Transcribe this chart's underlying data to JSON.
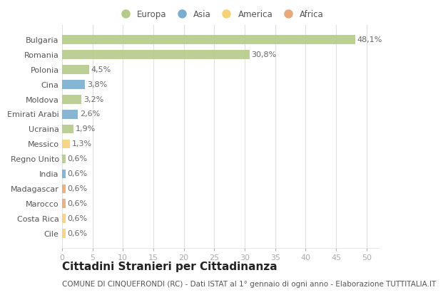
{
  "countries": [
    "Bulgaria",
    "Romania",
    "Polonia",
    "Cina",
    "Moldova",
    "Emirati Arabi",
    "Ucraina",
    "Messico",
    "Regno Unito",
    "India",
    "Madagascar",
    "Marocco",
    "Costa Rica",
    "Cile"
  ],
  "values": [
    48.1,
    30.8,
    4.5,
    3.8,
    3.2,
    2.6,
    1.9,
    1.3,
    0.6,
    0.6,
    0.6,
    0.6,
    0.6,
    0.6
  ],
  "labels": [
    "48,1%",
    "30,8%",
    "4,5%",
    "3,8%",
    "3,2%",
    "2,6%",
    "1,9%",
    "1,3%",
    "0,6%",
    "0,6%",
    "0,6%",
    "0,6%",
    "0,6%",
    "0,6%"
  ],
  "continents": [
    "Europa",
    "Europa",
    "Europa",
    "Asia",
    "Europa",
    "Asia",
    "Europa",
    "America",
    "Europa",
    "Asia",
    "Africa",
    "Africa",
    "America",
    "America"
  ],
  "continent_colors": {
    "Europa": "#b5cb8b",
    "Asia": "#7aaed0",
    "America": "#f5d17a",
    "Africa": "#e8a87c"
  },
  "legend_order": [
    "Europa",
    "Asia",
    "America",
    "Africa"
  ],
  "title": "Cittadini Stranieri per Cittadinanza",
  "subtitle": "COMUNE DI CINQUEFRONDI (RC) - Dati ISTAT al 1° gennaio di ogni anno - Elaborazione TUTTITALIA.IT",
  "xlim": [
    0,
    52
  ],
  "xticks": [
    0,
    5,
    10,
    15,
    20,
    25,
    30,
    35,
    40,
    45,
    50
  ],
  "background_color": "#ffffff",
  "grid_color": "#e0e0e0",
  "bar_height": 0.6,
  "label_fontsize": 8,
  "tick_fontsize": 8,
  "title_fontsize": 11,
  "subtitle_fontsize": 7.5
}
